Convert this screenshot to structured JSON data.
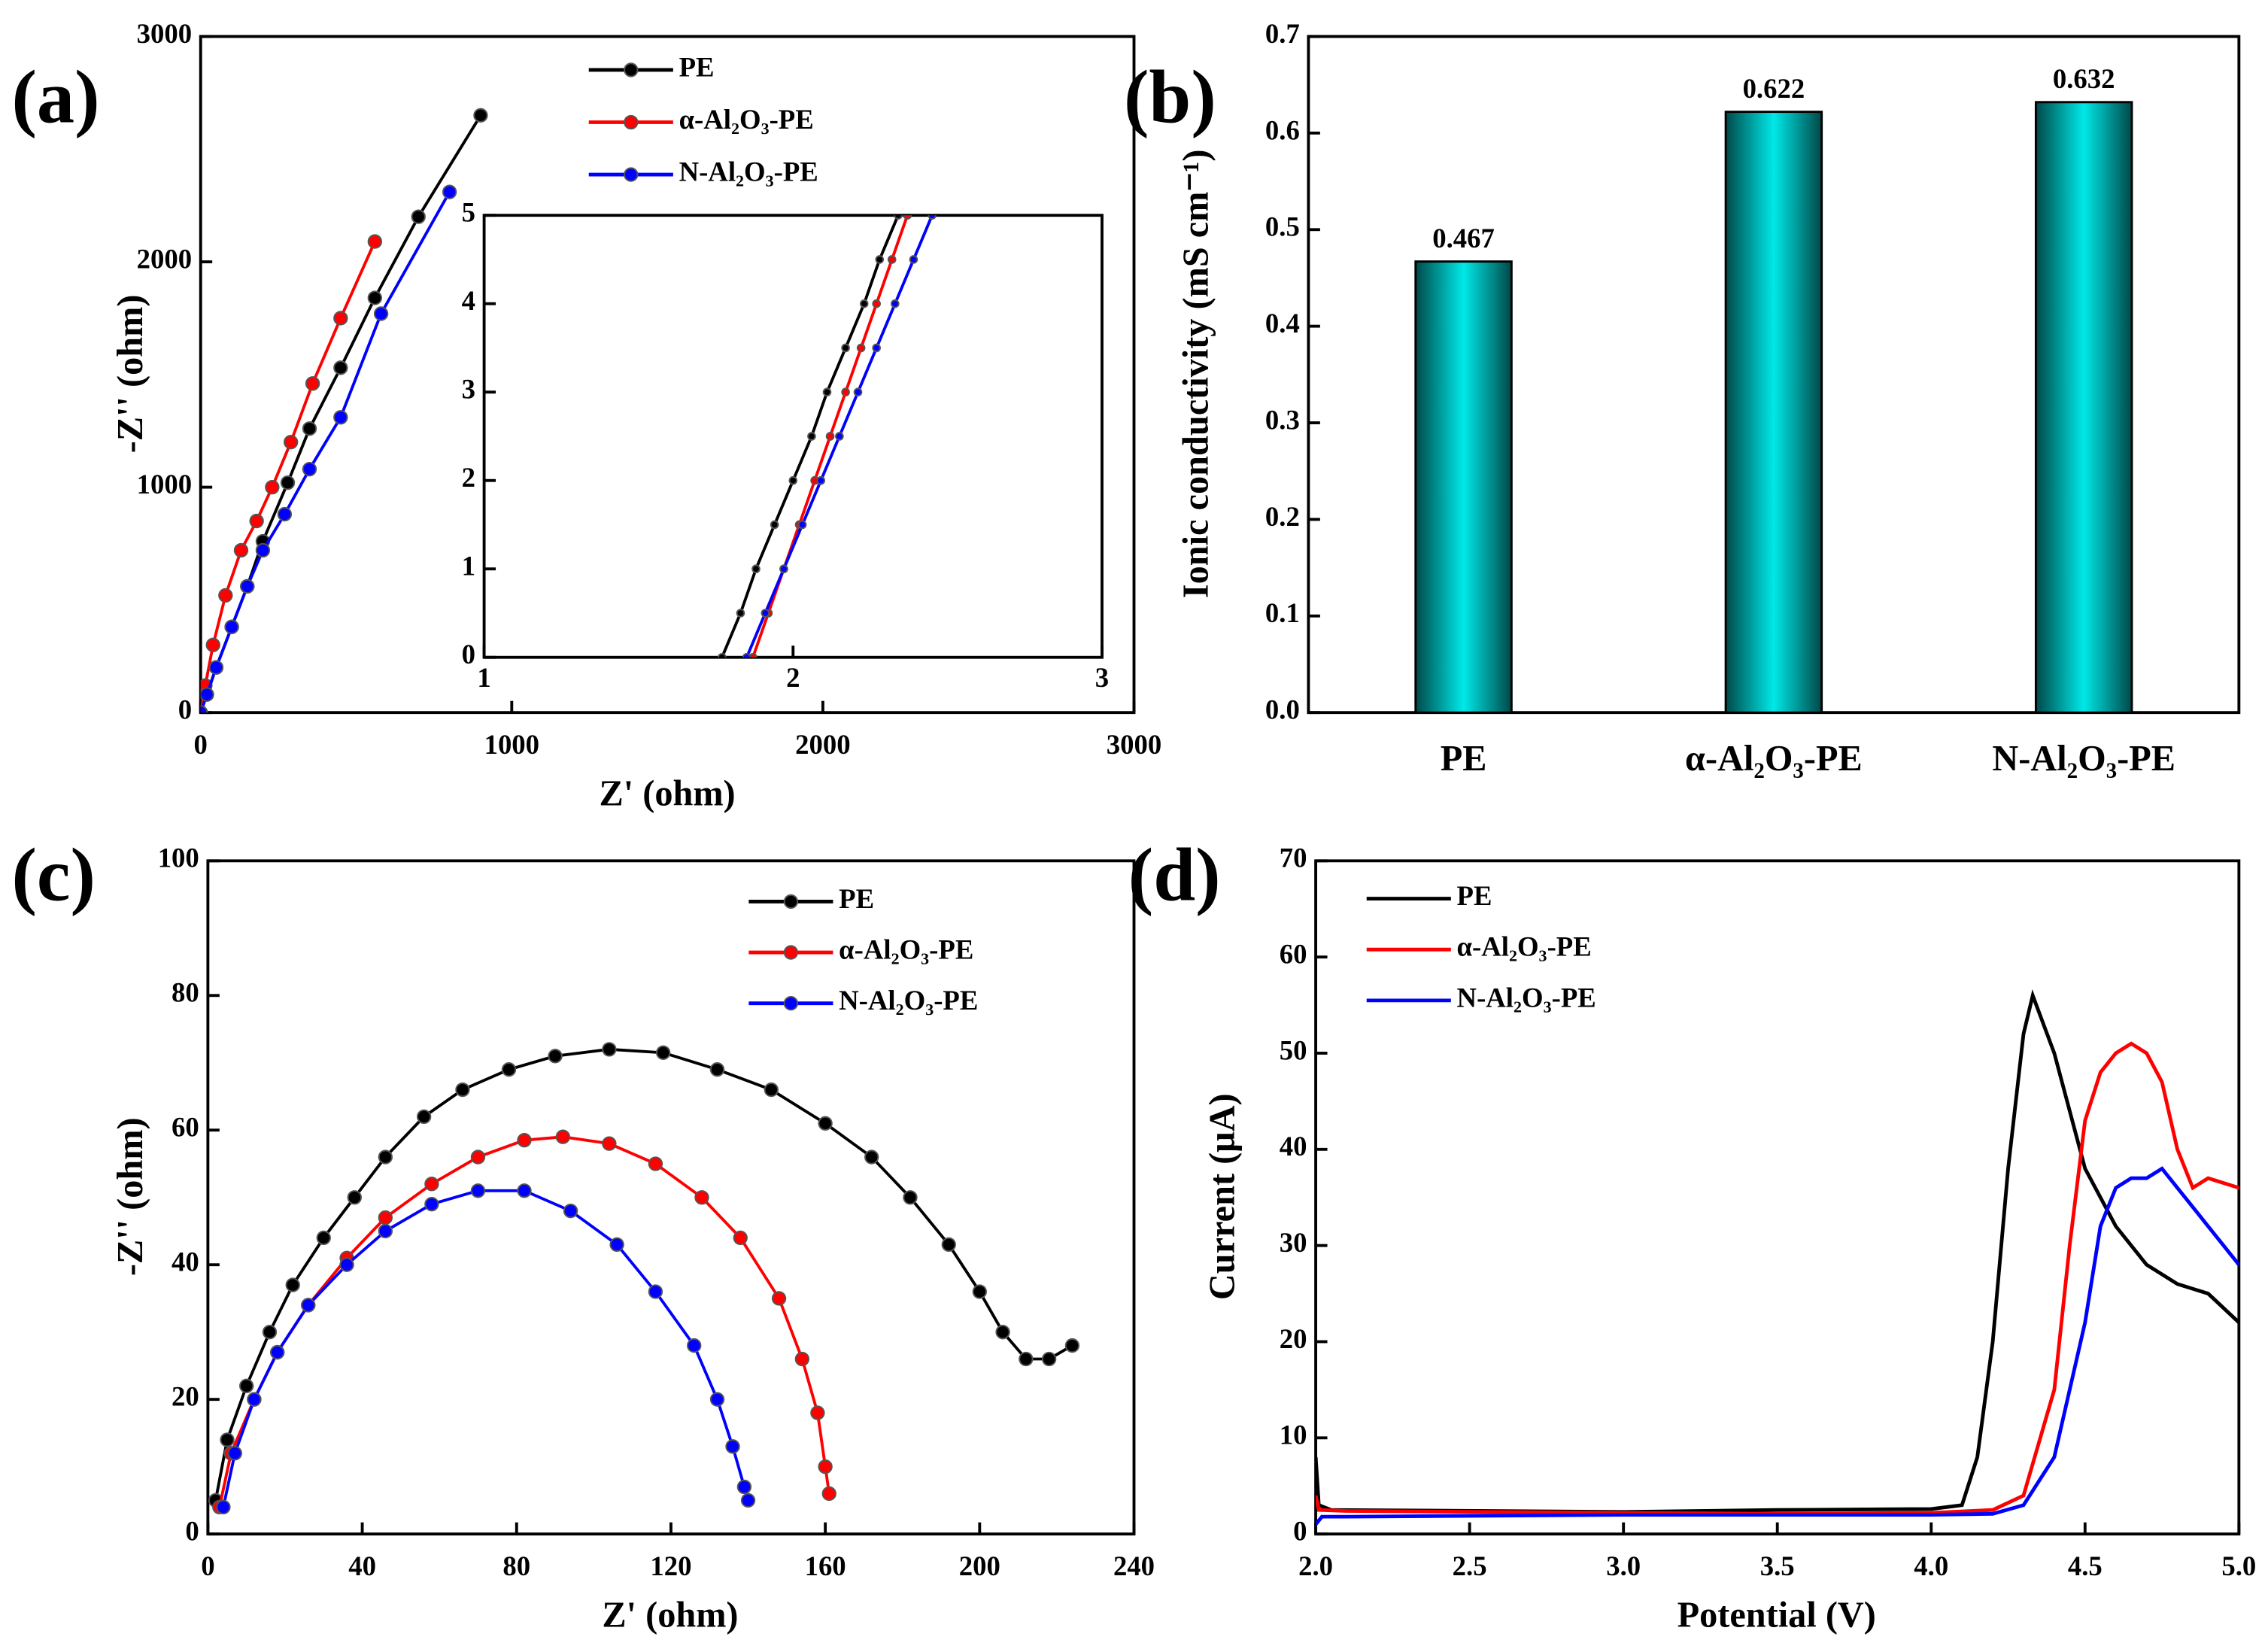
{
  "chart_data": [
    {
      "type": "line",
      "label": "(a)",
      "x_label": "Z' (ohm)",
      "y_label": "-Z'' (ohm)",
      "markers": true,
      "xlim": [
        0,
        3000
      ],
      "ylim": [
        0,
        3000
      ],
      "xticks": [
        0,
        1000,
        2000,
        3000
      ],
      "yticks": [
        0,
        1000,
        2000,
        3000
      ],
      "series": [
        {
          "name": "PE",
          "color": "#000000",
          "x": [
            0,
            20,
            50,
            100,
            150,
            200,
            280,
            350,
            450,
            560,
            700,
            900
          ],
          "values": [
            0,
            80,
            200,
            380,
            560,
            760,
            1020,
            1260,
            1530,
            1840,
            2200,
            2650
          ]
        },
        {
          "name": "α-Al₂O₃-PE",
          "color": "#ff0000",
          "x": [
            0,
            15,
            40,
            80,
            130,
            180,
            230,
            290,
            360,
            450,
            560
          ],
          "values": [
            0,
            120,
            300,
            520,
            720,
            850,
            1000,
            1200,
            1460,
            1750,
            2090
          ]
        },
        {
          "name": "N-Al₂O₃-PE",
          "color": "#0000ff",
          "x": [
            0,
            20,
            50,
            100,
            150,
            200,
            270,
            350,
            450,
            580,
            800
          ],
          "values": [
            0,
            80,
            200,
            380,
            560,
            720,
            880,
            1080,
            1310,
            1770,
            2310
          ]
        }
      ]
    },
    {
      "type": "line",
      "markers": true,
      "xlim": [
        1,
        3
      ],
      "ylim": [
        0,
        5
      ],
      "xticks": [
        1,
        2,
        3
      ],
      "yticks": [
        0,
        1,
        2,
        3,
        4,
        5
      ],
      "series": [
        {
          "name": "PE",
          "color": "#000000",
          "x": [
            1.77,
            1.83,
            1.88,
            1.94,
            2.0,
            2.06,
            2.11,
            2.17,
            2.23,
            2.28,
            2.34
          ],
          "values": [
            0,
            0.5,
            1,
            1.5,
            2,
            2.5,
            3,
            3.5,
            4,
            4.5,
            5
          ]
        },
        {
          "name": "α-Al₂O₃-PE",
          "color": "#ff0000",
          "x": [
            1.87,
            1.92,
            1.97,
            2.02,
            2.07,
            2.12,
            2.17,
            2.22,
            2.27,
            2.32,
            2.37
          ],
          "values": [
            0,
            0.5,
            1,
            1.5,
            2,
            2.5,
            3,
            3.5,
            4,
            4.5,
            5
          ]
        },
        {
          "name": "N-Al₂O₃-PE",
          "color": "#0000ff",
          "x": [
            1.85,
            1.91,
            1.97,
            2.03,
            2.09,
            2.15,
            2.21,
            2.27,
            2.33,
            2.39,
            2.45
          ],
          "values": [
            0,
            0.5,
            1,
            1.5,
            2,
            2.5,
            3,
            3.5,
            4,
            4.5,
            5
          ]
        }
      ]
    },
    {
      "type": "bar",
      "label": "(b)",
      "y_label": "Ionic conductivity (mS cm⁻¹)",
      "color": "#00e8e8",
      "categories": [
        "PE",
        "α-Al₂O₃-PE",
        "N-Al₂O₃-PE"
      ],
      "values": [
        0.467,
        0.622,
        0.632
      ],
      "ylim": [
        0,
        0.7
      ],
      "yticks": [
        {
          "value": 0,
          "label": "0.0"
        },
        0.1,
        0.2,
        0.3,
        0.4,
        0.5,
        0.6,
        0.7
      ]
    },
    {
      "type": "line",
      "label": "(c)",
      "x_label": "Z' (ohm)",
      "y_label": "-Z'' (ohm)",
      "markers": true,
      "xlim": [
        0,
        240
      ],
      "ylim": [
        0,
        100
      ],
      "xticks": [
        0,
        40,
        80,
        120,
        160,
        200,
        240
      ],
      "yticks": [
        0,
        20,
        40,
        60,
        80,
        100
      ],
      "series": [
        {
          "name": "PE",
          "color": "#000000",
          "x": [
            2,
            5,
            10,
            16,
            22,
            30,
            38,
            46,
            56,
            66,
            78,
            90,
            104,
            118,
            132,
            146,
            160,
            172,
            182,
            192,
            200,
            206,
            212,
            218,
            224
          ],
          "values": [
            5,
            14,
            22,
            30,
            37,
            44,
            50,
            56,
            62,
            66,
            69,
            71,
            72,
            71.5,
            69,
            66,
            61,
            56,
            50,
            43,
            36,
            30,
            26,
            26,
            28
          ]
        },
        {
          "name": "α-Al₂O₃-PE",
          "color": "#ff0000",
          "x": [
            3,
            6,
            12,
            18,
            26,
            36,
            46,
            58,
            70,
            82,
            92,
            104,
            116,
            128,
            138,
            148,
            154,
            158,
            160,
            161
          ],
          "values": [
            4,
            12,
            20,
            27,
            34,
            41,
            47,
            52,
            56,
            58.5,
            59,
            58,
            55,
            50,
            44,
            35,
            26,
            18,
            10,
            6
          ]
        },
        {
          "name": "N-Al₂O₃-PE",
          "color": "#0000ff",
          "x": [
            4,
            7,
            12,
            18,
            26,
            36,
            46,
            58,
            70,
            82,
            94,
            106,
            116,
            126,
            132,
            136,
            139,
            140
          ],
          "values": [
            4,
            12,
            20,
            27,
            34,
            40,
            45,
            49,
            51,
            51,
            48,
            43,
            36,
            28,
            20,
            13,
            7,
            5
          ]
        }
      ]
    },
    {
      "type": "line",
      "label": "(d)",
      "x_label": "Potential (V)",
      "y_label": "Current (μA)",
      "markers": false,
      "xlim": [
        2,
        5
      ],
      "ylim": [
        0,
        70
      ],
      "xticks": [
        {
          "value": 2,
          "label": "2.0"
        },
        2.5,
        {
          "value": 3,
          "label": "3.0"
        },
        3.5,
        {
          "value": 4,
          "label": "4.0"
        },
        4.5,
        {
          "value": 5,
          "label": "5.0"
        }
      ],
      "yticks": [
        0,
        10,
        20,
        30,
        40,
        50,
        60,
        70
      ],
      "series": [
        {
          "name": "PE",
          "color": "#000000",
          "x": [
            2.0,
            2.01,
            2.05,
            3.0,
            3.5,
            4.0,
            4.1,
            4.15,
            4.2,
            4.25,
            4.3,
            4.33,
            4.4,
            4.5,
            4.6,
            4.7,
            4.8,
            4.9,
            5.0
          ],
          "values": [
            8,
            3,
            2.5,
            2.3,
            2.5,
            2.6,
            3,
            8,
            20,
            38,
            52,
            56,
            50,
            38,
            32,
            28,
            26,
            25,
            22
          ]
        },
        {
          "name": "α-Al₂O₃-PE",
          "color": "#ff0000",
          "x": [
            2.0,
            2.01,
            2.1,
            3.0,
            3.5,
            4.0,
            4.2,
            4.3,
            4.4,
            4.45,
            4.5,
            4.55,
            4.6,
            4.65,
            4.7,
            4.75,
            4.8,
            4.85,
            4.9,
            5.0
          ],
          "values": [
            4,
            2.5,
            2.4,
            2.2,
            2.1,
            2.2,
            2.5,
            4,
            15,
            30,
            43,
            48,
            50,
            51,
            50,
            47,
            40,
            36,
            37,
            36
          ]
        },
        {
          "name": "N-Al₂O₃-PE",
          "color": "#0000ff",
          "x": [
            2.0,
            2.02,
            2.1,
            3.0,
            4.0,
            4.2,
            4.3,
            4.4,
            4.5,
            4.55,
            4.6,
            4.65,
            4.7,
            4.75,
            4.8,
            4.9,
            5.0
          ],
          "values": [
            1,
            1.8,
            1.8,
            2,
            2,
            2.1,
            3,
            8,
            22,
            32,
            36,
            37,
            37,
            38,
            36,
            32,
            28
          ]
        }
      ]
    }
  ]
}
